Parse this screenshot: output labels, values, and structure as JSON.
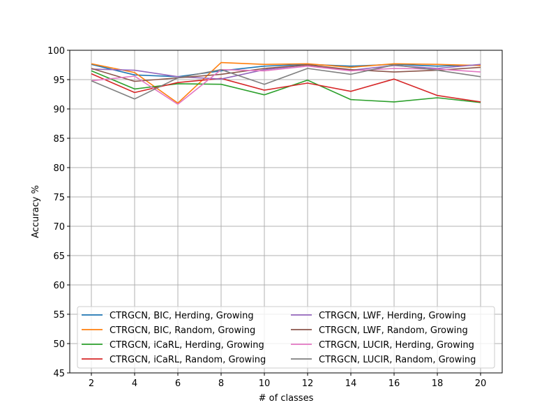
{
  "chart_data": {
    "type": "line",
    "title": "",
    "xlabel": "# of classes",
    "ylabel": "Accuracy %",
    "x": [
      2,
      4,
      6,
      8,
      10,
      12,
      14,
      16,
      18,
      20
    ],
    "xticks": [
      "2",
      "4",
      "6",
      "8",
      "10",
      "12",
      "14",
      "16",
      "18",
      "20"
    ],
    "yticks": [
      "45",
      "50",
      "55",
      "60",
      "65",
      "70",
      "75",
      "80",
      "85",
      "90",
      "95",
      "100"
    ],
    "xlim": [
      1,
      21
    ],
    "ylim": [
      45,
      100
    ],
    "grid": true,
    "legend_position": "lower center",
    "series": [
      {
        "name": "CTRGCN, BIC, Herding, Growing",
        "color": "#1f77b4",
        "values": [
          97.6,
          95.8,
          95.5,
          96.5,
          97.3,
          97.6,
          97.3,
          97.6,
          97.3,
          97.5
        ]
      },
      {
        "name": "CTRGCN, BIC, Random, Growing",
        "color": "#ff7f0e",
        "values": [
          97.7,
          96.2,
          91.0,
          97.9,
          97.6,
          97.7,
          97.1,
          97.7,
          97.6,
          97.4
        ]
      },
      {
        "name": "CTRGCN, iCaRL, Herding, Growing",
        "color": "#2ca02c",
        "values": [
          96.5,
          93.4,
          94.3,
          94.2,
          92.4,
          94.9,
          91.6,
          91.2,
          91.9,
          91.1
        ]
      },
      {
        "name": "CTRGCN, iCaRL, Random, Growing",
        "color": "#d62728",
        "values": [
          96.0,
          92.8,
          94.5,
          95.2,
          93.2,
          94.4,
          93.0,
          95.1,
          92.3,
          91.2
        ]
      },
      {
        "name": "CTRGCN, LWF, Herding, Growing",
        "color": "#9467bd",
        "values": [
          96.8,
          96.6,
          95.5,
          95.1,
          96.7,
          97.5,
          96.6,
          97.4,
          96.9,
          97.6
        ]
      },
      {
        "name": "CTRGCN, LWF, Random, Growing",
        "color": "#8c564b",
        "values": [
          96.9,
          94.7,
          95.3,
          95.9,
          96.9,
          97.5,
          96.7,
          96.3,
          96.6,
          97.1
        ]
      },
      {
        "name": "CTRGCN, LUCIR, Herding, Growing",
        "color": "#e377c2",
        "values": [
          94.8,
          95.6,
          90.8,
          96.7,
          96.5,
          97.3,
          96.5,
          96.9,
          96.8,
          96.3
        ]
      },
      {
        "name": "CTRGCN, LUCIR, Random, Growing",
        "color": "#7f7f7f",
        "values": [
          94.8,
          91.7,
          95.3,
          96.7,
          94.2,
          96.9,
          95.9,
          97.5,
          96.6,
          95.5
        ]
      }
    ]
  }
}
